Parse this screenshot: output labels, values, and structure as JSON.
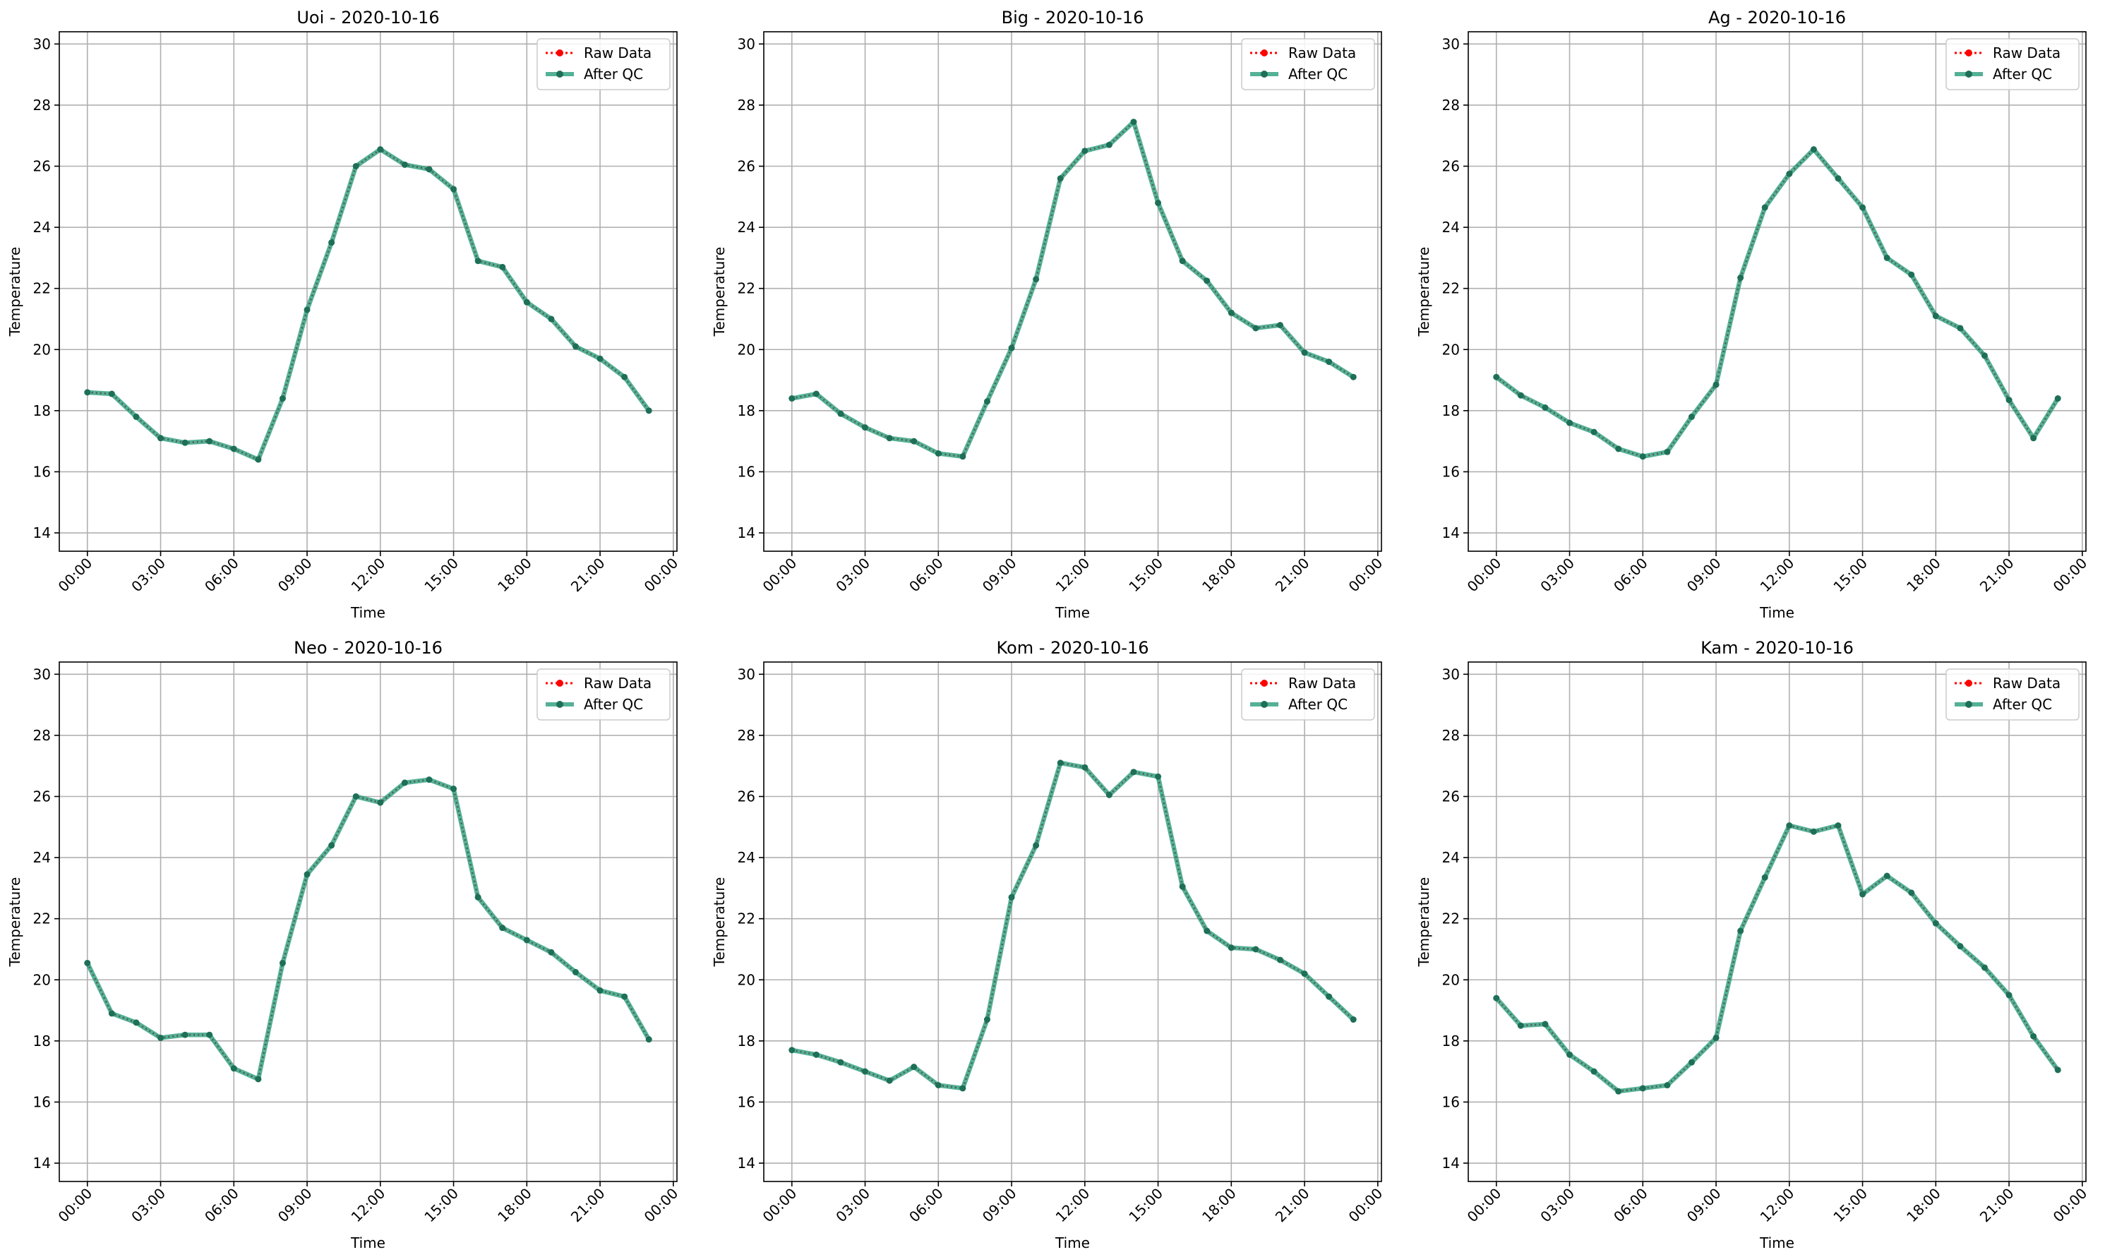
{
  "chart_data": [
    {
      "type": "line",
      "title": "Uoi - 2020-10-16",
      "xlabel": "Time",
      "ylabel": "Temperature",
      "ylim": [
        13.4,
        30.4
      ],
      "yticks": [
        14,
        16,
        18,
        20,
        22,
        24,
        26,
        28,
        30
      ],
      "xlim": [
        -1.15,
        24.15
      ],
      "xticks": [
        0,
        3,
        6,
        9,
        12,
        15,
        18,
        21,
        24
      ],
      "xtick_labels": [
        "00:00",
        "03:00",
        "06:00",
        "09:00",
        "12:00",
        "15:00",
        "18:00",
        "21:00",
        "00:00"
      ],
      "grid": true,
      "legend_position": "upper right",
      "legend": [
        "Raw Data",
        "After QC"
      ],
      "x": [
        0,
        1,
        2,
        3,
        4,
        5,
        6,
        7,
        8,
        9,
        10,
        11,
        12,
        13,
        14,
        15,
        16,
        17,
        18,
        19,
        20,
        21,
        22,
        23
      ],
      "series": [
        {
          "name": "Raw Data",
          "style": "dotted",
          "color": "#ff0000",
          "values": [
            18.6,
            18.55,
            17.8,
            17.1,
            16.95,
            17.0,
            16.75,
            16.4,
            18.4,
            21.3,
            23.5,
            26.0,
            26.55,
            26.05,
            25.9,
            25.25,
            22.9,
            22.7,
            21.55,
            21.0,
            20.1,
            19.7,
            19.1,
            18.0
          ]
        },
        {
          "name": "After QC",
          "style": "solid",
          "color": "#2a9d7c",
          "values": [
            18.6,
            18.55,
            17.8,
            17.1,
            16.95,
            17.0,
            16.75,
            16.4,
            18.4,
            21.3,
            23.5,
            26.0,
            26.55,
            26.05,
            25.9,
            25.25,
            22.9,
            22.7,
            21.55,
            21.0,
            20.1,
            19.7,
            19.1,
            18.0
          ]
        }
      ]
    },
    {
      "type": "line",
      "title": "Big - 2020-10-16",
      "xlabel": "Time",
      "ylabel": "Temperature",
      "ylim": [
        13.4,
        30.4
      ],
      "yticks": [
        14,
        16,
        18,
        20,
        22,
        24,
        26,
        28,
        30
      ],
      "xlim": [
        -1.15,
        24.15
      ],
      "xticks": [
        0,
        3,
        6,
        9,
        12,
        15,
        18,
        21,
        24
      ],
      "xtick_labels": [
        "00:00",
        "03:00",
        "06:00",
        "09:00",
        "12:00",
        "15:00",
        "18:00",
        "21:00",
        "00:00"
      ],
      "grid": true,
      "legend_position": "upper right",
      "legend": [
        "Raw Data",
        "After QC"
      ],
      "x": [
        0,
        1,
        2,
        3,
        4,
        5,
        6,
        7,
        8,
        9,
        10,
        11,
        12,
        13,
        14,
        15,
        16,
        17,
        18,
        19,
        20,
        21,
        22,
        23
      ],
      "series": [
        {
          "name": "Raw Data",
          "style": "dotted",
          "color": "#ff0000",
          "values": [
            18.4,
            18.55,
            17.9,
            17.45,
            17.1,
            17.0,
            16.6,
            16.5,
            18.3,
            20.05,
            22.3,
            25.6,
            26.5,
            26.7,
            27.45,
            24.8,
            22.9,
            22.25,
            21.2,
            20.7,
            20.8,
            19.9,
            19.6,
            19.1
          ]
        },
        {
          "name": "After QC",
          "style": "solid",
          "color": "#2a9d7c",
          "values": [
            18.4,
            18.55,
            17.9,
            17.45,
            17.1,
            17.0,
            16.6,
            16.5,
            18.3,
            20.05,
            22.3,
            25.6,
            26.5,
            26.7,
            27.45,
            24.8,
            22.9,
            22.25,
            21.2,
            20.7,
            20.8,
            19.9,
            19.6,
            19.1
          ]
        }
      ]
    },
    {
      "type": "line",
      "title": "Ag - 2020-10-16",
      "xlabel": "Time",
      "ylabel": "Temperature",
      "ylim": [
        13.4,
        30.4
      ],
      "yticks": [
        14,
        16,
        18,
        20,
        22,
        24,
        26,
        28,
        30
      ],
      "xlim": [
        -1.15,
        24.15
      ],
      "xticks": [
        0,
        3,
        6,
        9,
        12,
        15,
        18,
        21,
        24
      ],
      "xtick_labels": [
        "00:00",
        "03:00",
        "06:00",
        "09:00",
        "12:00",
        "15:00",
        "18:00",
        "21:00",
        "00:00"
      ],
      "grid": true,
      "legend_position": "upper right",
      "legend": [
        "Raw Data",
        "After QC"
      ],
      "x": [
        0,
        1,
        2,
        3,
        4,
        5,
        6,
        7,
        8,
        9,
        10,
        11,
        12,
        13,
        14,
        15,
        16,
        17,
        18,
        19,
        20,
        21,
        22,
        23
      ],
      "series": [
        {
          "name": "Raw Data",
          "style": "dotted",
          "color": "#ff0000",
          "values": [
            19.1,
            18.5,
            18.1,
            17.6,
            17.3,
            16.75,
            16.5,
            16.65,
            17.8,
            18.85,
            22.35,
            24.65,
            25.75,
            26.55,
            25.6,
            24.65,
            23.0,
            22.45,
            21.1,
            20.7,
            19.8,
            18.35,
            17.1,
            18.4
          ]
        },
        {
          "name": "After QC",
          "style": "solid",
          "color": "#2a9d7c",
          "values": [
            19.1,
            18.5,
            18.1,
            17.6,
            17.3,
            16.75,
            16.5,
            16.65,
            17.8,
            18.85,
            22.35,
            24.65,
            25.75,
            26.55,
            25.6,
            24.65,
            23.0,
            22.45,
            21.1,
            20.7,
            19.8,
            18.35,
            17.1,
            18.4
          ]
        }
      ]
    },
    {
      "type": "line",
      "title": "Neo - 2020-10-16",
      "xlabel": "Time",
      "ylabel": "Temperature",
      "ylim": [
        13.4,
        30.4
      ],
      "yticks": [
        14,
        16,
        18,
        20,
        22,
        24,
        26,
        28,
        30
      ],
      "xlim": [
        -1.15,
        24.15
      ],
      "xticks": [
        0,
        3,
        6,
        9,
        12,
        15,
        18,
        21,
        24
      ],
      "xtick_labels": [
        "00:00",
        "03:00",
        "06:00",
        "09:00",
        "12:00",
        "15:00",
        "18:00",
        "21:00",
        "00:00"
      ],
      "grid": true,
      "legend_position": "upper right",
      "legend": [
        "Raw Data",
        "After QC"
      ],
      "x": [
        0,
        1,
        2,
        3,
        4,
        5,
        6,
        7,
        8,
        9,
        10,
        11,
        12,
        13,
        14,
        15,
        16,
        17,
        18,
        19,
        20,
        21,
        22,
        23
      ],
      "series": [
        {
          "name": "Raw Data",
          "style": "dotted",
          "color": "#ff0000",
          "values": [
            20.55,
            18.9,
            18.6,
            18.1,
            18.2,
            18.2,
            17.1,
            16.75,
            20.55,
            23.45,
            24.4,
            26.0,
            25.8,
            26.45,
            26.55,
            26.25,
            22.7,
            21.7,
            21.3,
            20.9,
            20.25,
            19.65,
            19.45,
            18.05
          ]
        },
        {
          "name": "After QC",
          "style": "solid",
          "color": "#2a9d7c",
          "values": [
            20.55,
            18.9,
            18.6,
            18.1,
            18.2,
            18.2,
            17.1,
            16.75,
            20.55,
            23.45,
            24.4,
            26.0,
            25.8,
            26.45,
            26.55,
            26.25,
            22.7,
            21.7,
            21.3,
            20.9,
            20.25,
            19.65,
            19.45,
            18.05
          ]
        }
      ]
    },
    {
      "type": "line",
      "title": "Kom - 2020-10-16",
      "xlabel": "Time",
      "ylabel": "Temperature",
      "ylim": [
        13.4,
        30.4
      ],
      "yticks": [
        14,
        16,
        18,
        20,
        22,
        24,
        26,
        28,
        30
      ],
      "xlim": [
        -1.15,
        24.15
      ],
      "xticks": [
        0,
        3,
        6,
        9,
        12,
        15,
        18,
        21,
        24
      ],
      "xtick_labels": [
        "00:00",
        "03:00",
        "06:00",
        "09:00",
        "12:00",
        "15:00",
        "18:00",
        "21:00",
        "00:00"
      ],
      "grid": true,
      "legend_position": "upper right",
      "legend": [
        "Raw Data",
        "After QC"
      ],
      "x": [
        0,
        1,
        2,
        3,
        4,
        5,
        6,
        7,
        8,
        9,
        10,
        11,
        12,
        13,
        14,
        15,
        16,
        17,
        18,
        19,
        20,
        21,
        22,
        23
      ],
      "series": [
        {
          "name": "Raw Data",
          "style": "dotted",
          "color": "#ff0000",
          "values": [
            17.7,
            17.55,
            17.3,
            17.0,
            16.7,
            17.15,
            16.55,
            16.45,
            18.7,
            22.7,
            24.4,
            27.1,
            26.95,
            26.05,
            26.8,
            26.65,
            23.05,
            21.6,
            21.05,
            21.0,
            20.65,
            20.2,
            19.45,
            18.7
          ]
        },
        {
          "name": "After QC",
          "style": "solid",
          "color": "#2a9d7c",
          "values": [
            17.7,
            17.55,
            17.3,
            17.0,
            16.7,
            17.15,
            16.55,
            16.45,
            18.7,
            22.7,
            24.4,
            27.1,
            26.95,
            26.05,
            26.8,
            26.65,
            23.05,
            21.6,
            21.05,
            21.0,
            20.65,
            20.2,
            19.45,
            18.7
          ]
        }
      ]
    },
    {
      "type": "line",
      "title": "Kam - 2020-10-16",
      "xlabel": "Time",
      "ylabel": "Temperature",
      "ylim": [
        13.4,
        30.4
      ],
      "yticks": [
        14,
        16,
        18,
        20,
        22,
        24,
        26,
        28,
        30
      ],
      "xlim": [
        -1.15,
        24.15
      ],
      "xticks": [
        0,
        3,
        6,
        9,
        12,
        15,
        18,
        21,
        24
      ],
      "xtick_labels": [
        "00:00",
        "03:00",
        "06:00",
        "09:00",
        "12:00",
        "15:00",
        "18:00",
        "21:00",
        "00:00"
      ],
      "grid": true,
      "legend_position": "upper right",
      "legend": [
        "Raw Data",
        "After QC"
      ],
      "x": [
        0,
        1,
        2,
        3,
        4,
        5,
        6,
        7,
        8,
        9,
        10,
        11,
        12,
        13,
        14,
        15,
        16,
        17,
        18,
        19,
        20,
        21,
        22,
        23
      ],
      "series": [
        {
          "name": "Raw Data",
          "style": "dotted",
          "color": "#ff0000",
          "values": [
            19.4,
            18.5,
            18.55,
            17.55,
            17.0,
            16.35,
            16.45,
            16.55,
            17.3,
            18.1,
            21.6,
            23.35,
            25.05,
            24.85,
            25.05,
            22.8,
            23.4,
            22.85,
            21.85,
            21.1,
            20.4,
            19.5,
            18.15,
            17.05
          ]
        },
        {
          "name": "After QC",
          "style": "solid",
          "color": "#2a9d7c",
          "values": [
            19.4,
            18.5,
            18.55,
            17.55,
            17.0,
            16.35,
            16.45,
            16.55,
            17.3,
            18.1,
            21.6,
            23.35,
            25.05,
            24.85,
            25.05,
            22.8,
            23.4,
            22.85,
            21.85,
            21.1,
            20.4,
            19.5,
            18.15,
            17.05
          ]
        }
      ]
    }
  ]
}
